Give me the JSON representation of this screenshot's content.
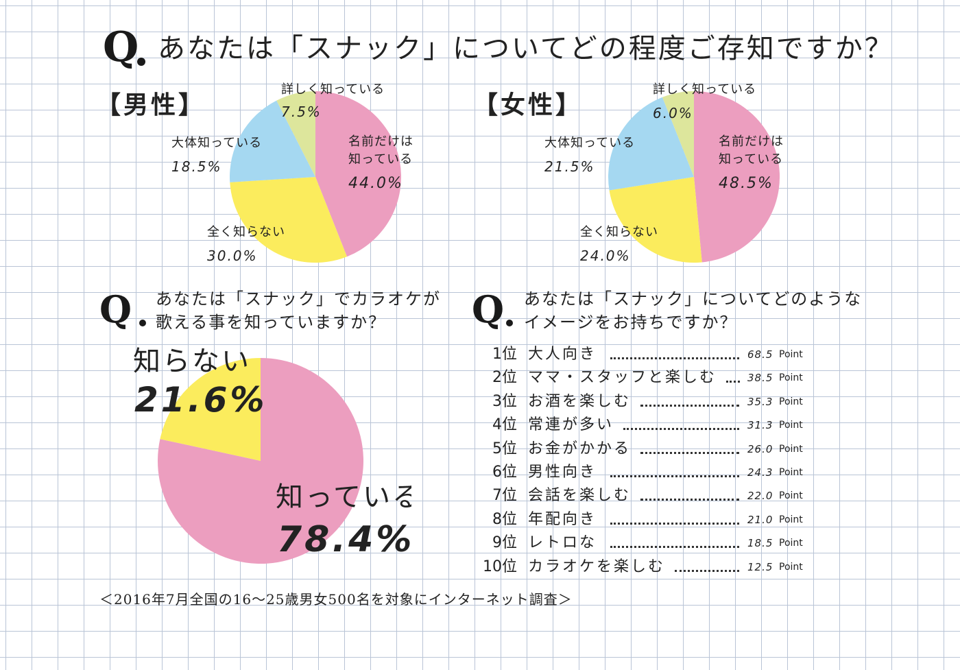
{
  "main_question": {
    "q": "Q",
    "text": "あなたは「スナック」についてどの程度ご存知ですか？"
  },
  "colors": {
    "pink": "#ec9ebf",
    "yellow": "#fbec5d",
    "blue": "#a5d8f1",
    "green": "#dde69c"
  },
  "chart_data": [
    {
      "type": "pie",
      "title": "【男性】",
      "slices": [
        {
          "label": "名前だけは知っている",
          "label_lines": [
            "名前だけは",
            "知っている"
          ],
          "value": 44.0,
          "value_text": "44.0%",
          "color": "#ec9ebf"
        },
        {
          "label": "全く知らない",
          "label_lines": [
            "全く知らない"
          ],
          "value": 30.0,
          "value_text": "30.0%",
          "color": "#fbec5d"
        },
        {
          "label": "大体知っている",
          "label_lines": [
            "大体知っている"
          ],
          "value": 18.5,
          "value_text": "18.5%",
          "color": "#a5d8f1"
        },
        {
          "label": "詳しく知っている",
          "label_lines": [
            "詳しく知っている"
          ],
          "value": 7.5,
          "value_text": "7.5%",
          "color": "#dde69c"
        }
      ]
    },
    {
      "type": "pie",
      "title": "【女性】",
      "slices": [
        {
          "label": "名前だけは知っている",
          "label_lines": [
            "名前だけは",
            "知っている"
          ],
          "value": 48.5,
          "value_text": "48.5%",
          "color": "#ec9ebf"
        },
        {
          "label": "全く知らない",
          "label_lines": [
            "全く知らない"
          ],
          "value": 24.0,
          "value_text": "24.0%",
          "color": "#fbec5d"
        },
        {
          "label": "大体知っている",
          "label_lines": [
            "大体知っている"
          ],
          "value": 21.5,
          "value_text": "21.5%",
          "color": "#a5d8f1"
        },
        {
          "label": "詳しく知っている",
          "label_lines": [
            "詳しく知っている"
          ],
          "value": 6.0,
          "value_text": "6.0%",
          "color": "#dde69c"
        }
      ]
    },
    {
      "type": "pie",
      "title": "あなたは「スナック」でカラオケが歌える事を知っていますか？",
      "title_lines": [
        "あなたは「スナック」でカラオケが",
        "歌える事を知っていますか？"
      ],
      "slices": [
        {
          "label": "知っている",
          "value": 78.4,
          "value_text": "78.4%",
          "color": "#ec9ebf"
        },
        {
          "label": "知らない",
          "value": 21.6,
          "value_text": "21.6%",
          "color": "#fbec5d"
        }
      ]
    },
    {
      "type": "table",
      "title": "あなたは「スナック」についてどのようなイメージをお持ちですか？",
      "title_lines": [
        "あなたは「スナック」についてどのような",
        "イメージをお持ちですか？"
      ],
      "unit": "Point",
      "rows": [
        {
          "rank": "1位",
          "label": "大人向き",
          "value": 68.5,
          "value_text": "68.5"
        },
        {
          "rank": "2位",
          "label": "ママ・スタッフと楽しむ",
          "value": 38.5,
          "value_text": "38.5"
        },
        {
          "rank": "3位",
          "label": "お酒を楽しむ",
          "value": 35.3,
          "value_text": "35.3"
        },
        {
          "rank": "4位",
          "label": "常連が多い",
          "value": 31.3,
          "value_text": "31.3"
        },
        {
          "rank": "5位",
          "label": "お金がかかる",
          "value": 26.0,
          "value_text": "26.0"
        },
        {
          "rank": "6位",
          "label": "男性向き",
          "value": 24.3,
          "value_text": "24.3"
        },
        {
          "rank": "7位",
          "label": "会話を楽しむ",
          "value": 22.0,
          "value_text": "22.0"
        },
        {
          "rank": "8位",
          "label": "年配向き",
          "value": 21.0,
          "value_text": "21.0"
        },
        {
          "rank": "9位",
          "label": "レトロな",
          "value": 18.5,
          "value_text": "18.5"
        },
        {
          "rank": "10位",
          "label": "カラオケを楽しむ",
          "value": 12.5,
          "value_text": "12.5"
        }
      ]
    }
  ],
  "footnote": "＜2016年7月全国の16～25歳男女500名を対象にインターネット調査＞"
}
